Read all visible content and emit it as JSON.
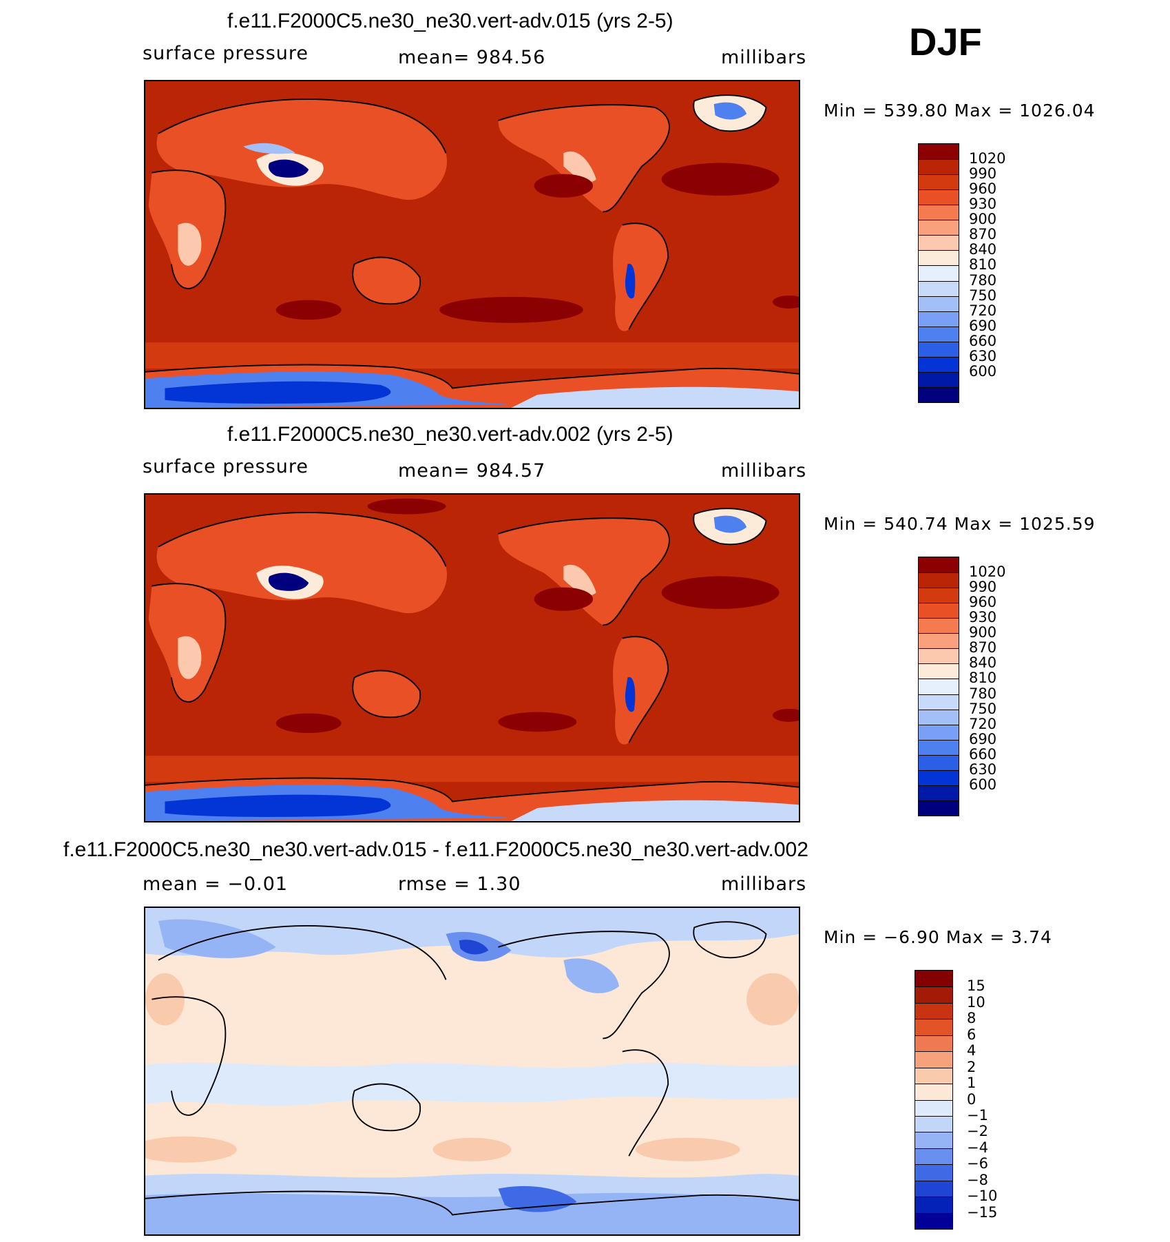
{
  "season": "DJF",
  "colors": {
    "ps_levels": [
      "#00007f",
      "#0019a6",
      "#0335d6",
      "#2a5fe6",
      "#4f80f0",
      "#7aa0f5",
      "#a3bff7",
      "#c8daf9",
      "#e6f0fc",
      "#fdebd9",
      "#fcc9ae",
      "#f9a07c",
      "#f57a50",
      "#ea5025",
      "#d43a10",
      "#b92505",
      "#8b0000"
    ],
    "diff_levels": [
      "#000099",
      "#0522b8",
      "#1f45d5",
      "#3f6ae6",
      "#6a90ef",
      "#95b4f5",
      "#c1d6f9",
      "#ddeafb",
      "#fde8d7",
      "#f9caac",
      "#f5a27d",
      "#ef7a52",
      "#e25427",
      "#c83311",
      "#a31b06",
      "#850000"
    ],
    "coastline": "#000000"
  },
  "panels": [
    {
      "title": "f.e11.F2000C5.ne30_ne30.vert-adv.015 (yrs 2-5)",
      "left_label": "surface pressure",
      "center_label": "mean=  984.56",
      "right_label": "millibars",
      "minmax": "Min  =  539.80  Max  =  1026.04"
    },
    {
      "title": "f.e11.F2000C5.ne30_ne30.vert-adv.002 (yrs 2-5)",
      "left_label": "surface pressure",
      "center_label": "mean=  984.57",
      "right_label": "millibars",
      "minmax": "Min  =  540.74  Max  =  1025.59"
    },
    {
      "title": "f.e11.F2000C5.ne30_ne30.vert-adv.015 - f.e11.F2000C5.ne30_ne30.vert-adv.002",
      "left_label": "mean  =    −0.01",
      "center_label": "rmse  =      1.30",
      "right_label": "millibars",
      "minmax": "Min  =    −6.90  Max  =      3.74"
    }
  ],
  "chart_data": [
    {
      "type": "heatmap",
      "title": "f.e11.F2000C5.ne30_ne30.vert-adv.015 (yrs 2-5)",
      "variable": "surface pressure",
      "units": "millibars",
      "mean": 984.56,
      "min": 539.8,
      "max": 1026.04,
      "colorbar_labels": [
        "1020",
        "990",
        "960",
        "930",
        "900",
        "870",
        "840",
        "810",
        "780",
        "750",
        "720",
        "690",
        "660",
        "630",
        "600"
      ],
      "colorbar_levels": [
        1020,
        990,
        960,
        930,
        900,
        870,
        840,
        810,
        780,
        750,
        720,
        690,
        660,
        630,
        600
      ]
    },
    {
      "type": "heatmap",
      "title": "f.e11.F2000C5.ne30_ne30.vert-adv.002 (yrs 2-5)",
      "variable": "surface pressure",
      "units": "millibars",
      "mean": 984.57,
      "min": 540.74,
      "max": 1025.59,
      "colorbar_labels": [
        "1020",
        "990",
        "960",
        "930",
        "900",
        "870",
        "840",
        "810",
        "780",
        "750",
        "720",
        "690",
        "660",
        "630",
        "600"
      ],
      "colorbar_levels": [
        1020,
        990,
        960,
        930,
        900,
        870,
        840,
        810,
        780,
        750,
        720,
        690,
        660,
        630,
        600
      ]
    },
    {
      "type": "heatmap",
      "title": "f.e11.F2000C5.ne30_ne30.vert-adv.015 - f.e11.F2000C5.ne30_ne30.vert-adv.002",
      "units": "millibars",
      "mean": -0.01,
      "rmse": 1.3,
      "min": -6.9,
      "max": 3.74,
      "colorbar_labels": [
        "15",
        "10",
        "8",
        "6",
        "4",
        "2",
        "1",
        "0",
        "−1",
        "−2",
        "−4",
        "−6",
        "−8",
        "−10",
        "−15"
      ],
      "colorbar_levels": [
        15,
        10,
        8,
        6,
        4,
        2,
        1,
        0,
        -1,
        -2,
        -4,
        -6,
        -8,
        -10,
        -15
      ]
    }
  ]
}
